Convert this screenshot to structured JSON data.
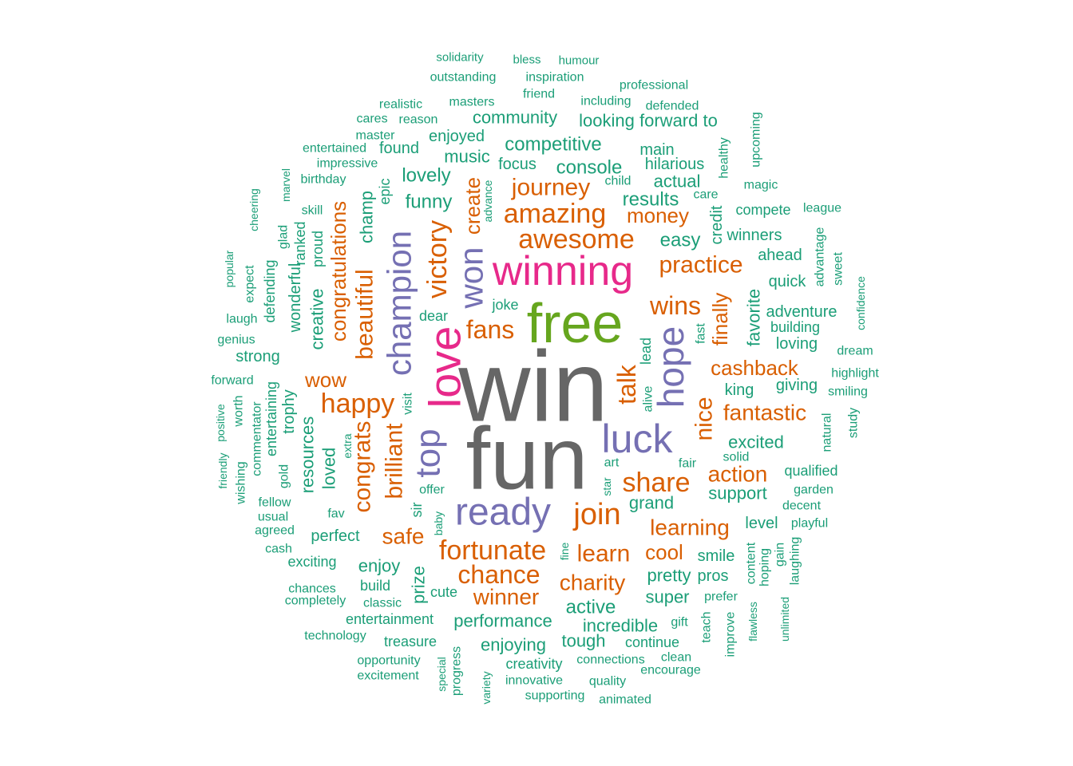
{
  "palette": {
    "t1": "#666666",
    "t2": "#66a61e",
    "t3": "#e7298a",
    "t4": "#7570b3",
    "t5": "#d95f02",
    "t6": "#1b9e77"
  },
  "words": [
    {
      "text": "win",
      "tier": "t1"
    },
    {
      "text": "fun",
      "tier": "t1"
    },
    {
      "text": "free",
      "tier": "t2"
    },
    {
      "text": "winning",
      "tier": "t3"
    },
    {
      "text": "love",
      "tier": "t3"
    },
    {
      "text": "hope",
      "tier": "t4"
    },
    {
      "text": "luck",
      "tier": "t4"
    },
    {
      "text": "ready",
      "tier": "t4"
    },
    {
      "text": "champion",
      "tier": "t4"
    },
    {
      "text": "won",
      "tier": "t4"
    },
    {
      "text": "top",
      "tier": "t4"
    },
    {
      "text": "awesome",
      "tier": "t5"
    },
    {
      "text": "amazing",
      "tier": "t5"
    },
    {
      "text": "join",
      "tier": "t5"
    },
    {
      "text": "share",
      "tier": "t5"
    },
    {
      "text": "fortunate",
      "tier": "t5"
    },
    {
      "text": "chance",
      "tier": "t5"
    },
    {
      "text": "victory",
      "tier": "t5"
    },
    {
      "text": "happy",
      "tier": "t5"
    },
    {
      "text": "fans",
      "tier": "t5"
    },
    {
      "text": "wins",
      "tier": "t5"
    },
    {
      "text": "talk",
      "tier": "t5"
    },
    {
      "text": "nice",
      "tier": "t5"
    },
    {
      "text": "learn",
      "tier": "t5"
    },
    {
      "text": "journey",
      "tier": "t5"
    },
    {
      "text": "practice",
      "tier": "t5"
    },
    {
      "text": "beautiful",
      "tier": "t5"
    },
    {
      "text": "brilliant",
      "tier": "t5"
    },
    {
      "text": "congrats",
      "tier": "t5"
    },
    {
      "text": "fantastic",
      "tier": "t5"
    },
    {
      "text": "charity",
      "tier": "t5"
    },
    {
      "text": "winner",
      "tier": "t5"
    },
    {
      "text": "safe",
      "tier": "t5"
    },
    {
      "text": "learning",
      "tier": "t5"
    },
    {
      "text": "cashback",
      "tier": "t5"
    },
    {
      "text": "action",
      "tier": "t5"
    },
    {
      "text": "money",
      "tier": "t5"
    },
    {
      "text": "create",
      "tier": "t5"
    },
    {
      "text": "finally",
      "tier": "t5"
    },
    {
      "text": "congratulations",
      "tier": "t5"
    },
    {
      "text": "cool",
      "tier": "t5"
    },
    {
      "text": "wow",
      "tier": "t5"
    },
    {
      "text": "competitive",
      "tier": "t6"
    },
    {
      "text": "console",
      "tier": "t6"
    },
    {
      "text": "results",
      "tier": "t6"
    },
    {
      "text": "easy",
      "tier": "t6"
    },
    {
      "text": "actual",
      "tier": "t6"
    },
    {
      "text": "hilarious",
      "tier": "t6"
    },
    {
      "text": "main",
      "tier": "t6"
    },
    {
      "text": "funny",
      "tier": "t6"
    },
    {
      "text": "lovely",
      "tier": "t6"
    },
    {
      "text": "music",
      "tier": "t6"
    },
    {
      "text": "community",
      "tier": "t6"
    },
    {
      "text": "looking forward to",
      "tier": "t6"
    },
    {
      "text": "enjoyed",
      "tier": "t6"
    },
    {
      "text": "found",
      "tier": "t6"
    },
    {
      "text": "focus",
      "tier": "t6"
    },
    {
      "text": "champ",
      "tier": "t6"
    },
    {
      "text": "epic",
      "tier": "t6"
    },
    {
      "text": "advance",
      "tier": "t6"
    },
    {
      "text": "child",
      "tier": "t6"
    },
    {
      "text": "care",
      "tier": "t6"
    },
    {
      "text": "credit",
      "tier": "t6"
    },
    {
      "text": "healthy",
      "tier": "t6"
    },
    {
      "text": "upcoming",
      "tier": "t6"
    },
    {
      "text": "magic",
      "tier": "t6"
    },
    {
      "text": "compete",
      "tier": "t6"
    },
    {
      "text": "league",
      "tier": "t6"
    },
    {
      "text": "winners",
      "tier": "t6"
    },
    {
      "text": "ahead",
      "tier": "t6"
    },
    {
      "text": "quick",
      "tier": "t6"
    },
    {
      "text": "advantage",
      "tier": "t6"
    },
    {
      "text": "sweet",
      "tier": "t6"
    },
    {
      "text": "confidence",
      "tier": "t6"
    },
    {
      "text": "adventure",
      "tier": "t6"
    },
    {
      "text": "building",
      "tier": "t6"
    },
    {
      "text": "loving",
      "tier": "t6"
    },
    {
      "text": "favorite",
      "tier": "t6"
    },
    {
      "text": "fast",
      "tier": "t6"
    },
    {
      "text": "dream",
      "tier": "t6"
    },
    {
      "text": "highlight",
      "tier": "t6"
    },
    {
      "text": "smiling",
      "tier": "t6"
    },
    {
      "text": "study",
      "tier": "t6"
    },
    {
      "text": "natural",
      "tier": "t6"
    },
    {
      "text": "king",
      "tier": "t6"
    },
    {
      "text": "giving",
      "tier": "t6"
    },
    {
      "text": "excited",
      "tier": "t6"
    },
    {
      "text": "solid",
      "tier": "t6"
    },
    {
      "text": "qualified",
      "tier": "t6"
    },
    {
      "text": "garden",
      "tier": "t6"
    },
    {
      "text": "decent",
      "tier": "t6"
    },
    {
      "text": "playful",
      "tier": "t6"
    },
    {
      "text": "support",
      "tier": "t6"
    },
    {
      "text": "level",
      "tier": "t6"
    },
    {
      "text": "gain",
      "tier": "t6"
    },
    {
      "text": "laughing",
      "tier": "t6"
    },
    {
      "text": "smile",
      "tier": "t6"
    },
    {
      "text": "content",
      "tier": "t6"
    },
    {
      "text": "hoping",
      "tier": "t6"
    },
    {
      "text": "pros",
      "tier": "t6"
    },
    {
      "text": "prefer",
      "tier": "t6"
    },
    {
      "text": "improve",
      "tier": "t6"
    },
    {
      "text": "flawless",
      "tier": "t6"
    },
    {
      "text": "unlimited",
      "tier": "t6"
    },
    {
      "text": "teach",
      "tier": "t6"
    },
    {
      "text": "gift",
      "tier": "t6"
    },
    {
      "text": "super",
      "tier": "t6"
    },
    {
      "text": "pretty",
      "tier": "t6"
    },
    {
      "text": "grand",
      "tier": "t6"
    },
    {
      "text": "fair",
      "tier": "t6"
    },
    {
      "text": "art",
      "tier": "t6"
    },
    {
      "text": "star",
      "tier": "t6"
    },
    {
      "text": "alive",
      "tier": "t6"
    },
    {
      "text": "lead",
      "tier": "t6"
    },
    {
      "text": "joke",
      "tier": "t6"
    },
    {
      "text": "dear",
      "tier": "t6"
    },
    {
      "text": "visit",
      "tier": "t6"
    },
    {
      "text": "offer",
      "tier": "t6"
    },
    {
      "text": "sir",
      "tier": "t6"
    },
    {
      "text": "baby",
      "tier": "t6"
    },
    {
      "text": "fine",
      "tier": "t6"
    },
    {
      "text": "active",
      "tier": "t6"
    },
    {
      "text": "incredible",
      "tier": "t6"
    },
    {
      "text": "performance",
      "tier": "t6"
    },
    {
      "text": "tough",
      "tier": "t6"
    },
    {
      "text": "continue",
      "tier": "t6"
    },
    {
      "text": "enjoying",
      "tier": "t6"
    },
    {
      "text": "creativity",
      "tier": "t6"
    },
    {
      "text": "connections",
      "tier": "t6"
    },
    {
      "text": "clean",
      "tier": "t6"
    },
    {
      "text": "encourage",
      "tier": "t6"
    },
    {
      "text": "quality",
      "tier": "t6"
    },
    {
      "text": "innovative",
      "tier": "t6"
    },
    {
      "text": "supporting",
      "tier": "t6"
    },
    {
      "text": "animated",
      "tier": "t6"
    },
    {
      "text": "variety",
      "tier": "t6"
    },
    {
      "text": "progress",
      "tier": "t6"
    },
    {
      "text": "special",
      "tier": "t6"
    },
    {
      "text": "treasure",
      "tier": "t6"
    },
    {
      "text": "opportunity",
      "tier": "t6"
    },
    {
      "text": "excitement",
      "tier": "t6"
    },
    {
      "text": "technology",
      "tier": "t6"
    },
    {
      "text": "entertainment",
      "tier": "t6"
    },
    {
      "text": "classic",
      "tier": "t6"
    },
    {
      "text": "cute",
      "tier": "t6"
    },
    {
      "text": "prize",
      "tier": "t6"
    },
    {
      "text": "build",
      "tier": "t6"
    },
    {
      "text": "enjoy",
      "tier": "t6"
    },
    {
      "text": "chances",
      "tier": "t6"
    },
    {
      "text": "completely",
      "tier": "t6"
    },
    {
      "text": "exciting",
      "tier": "t6"
    },
    {
      "text": "perfect",
      "tier": "t6"
    },
    {
      "text": "cash",
      "tier": "t6"
    },
    {
      "text": "agreed",
      "tier": "t6"
    },
    {
      "text": "usual",
      "tier": "t6"
    },
    {
      "text": "fellow",
      "tier": "t6"
    },
    {
      "text": "fav",
      "tier": "t6"
    },
    {
      "text": "loved",
      "tier": "t6"
    },
    {
      "text": "resources",
      "tier": "t6"
    },
    {
      "text": "extra",
      "tier": "t6"
    },
    {
      "text": "gold",
      "tier": "t6"
    },
    {
      "text": "trophy",
      "tier": "t6"
    },
    {
      "text": "entertaining",
      "tier": "t6"
    },
    {
      "text": "commentator",
      "tier": "t6"
    },
    {
      "text": "worth",
      "tier": "t6"
    },
    {
      "text": "wishing",
      "tier": "t6"
    },
    {
      "text": "positive",
      "tier": "t6"
    },
    {
      "text": "friendly",
      "tier": "t6"
    },
    {
      "text": "forward",
      "tier": "t6"
    },
    {
      "text": "genius",
      "tier": "t6"
    },
    {
      "text": "strong",
      "tier": "t6"
    },
    {
      "text": "laugh",
      "tier": "t6"
    },
    {
      "text": "popular",
      "tier": "t6"
    },
    {
      "text": "expect",
      "tier": "t6"
    },
    {
      "text": "defending",
      "tier": "t6"
    },
    {
      "text": "cheering",
      "tier": "t6"
    },
    {
      "text": "glad",
      "tier": "t6"
    },
    {
      "text": "marvel",
      "tier": "t6"
    },
    {
      "text": "wonderful",
      "tier": "t6"
    },
    {
      "text": "ranked",
      "tier": "t6"
    },
    {
      "text": "skill",
      "tier": "t6"
    },
    {
      "text": "creative",
      "tier": "t6"
    },
    {
      "text": "proud",
      "tier": "t6"
    },
    {
      "text": "birthday",
      "tier": "t6"
    },
    {
      "text": "impressive",
      "tier": "t6"
    },
    {
      "text": "entertained",
      "tier": "t6"
    },
    {
      "text": "master",
      "tier": "t6"
    },
    {
      "text": "cares",
      "tier": "t6"
    },
    {
      "text": "reason",
      "tier": "t6"
    },
    {
      "text": "realistic",
      "tier": "t6"
    },
    {
      "text": "masters",
      "tier": "t6"
    },
    {
      "text": "friend",
      "tier": "t6"
    },
    {
      "text": "including",
      "tier": "t6"
    },
    {
      "text": "defended",
      "tier": "t6"
    },
    {
      "text": "professional",
      "tier": "t6"
    },
    {
      "text": "outstanding",
      "tier": "t6"
    },
    {
      "text": "inspiration",
      "tier": "t6"
    },
    {
      "text": "solidarity",
      "tier": "t6"
    },
    {
      "text": "bless",
      "tier": "t6"
    },
    {
      "text": "humour",
      "tier": "t6"
    }
  ]
}
